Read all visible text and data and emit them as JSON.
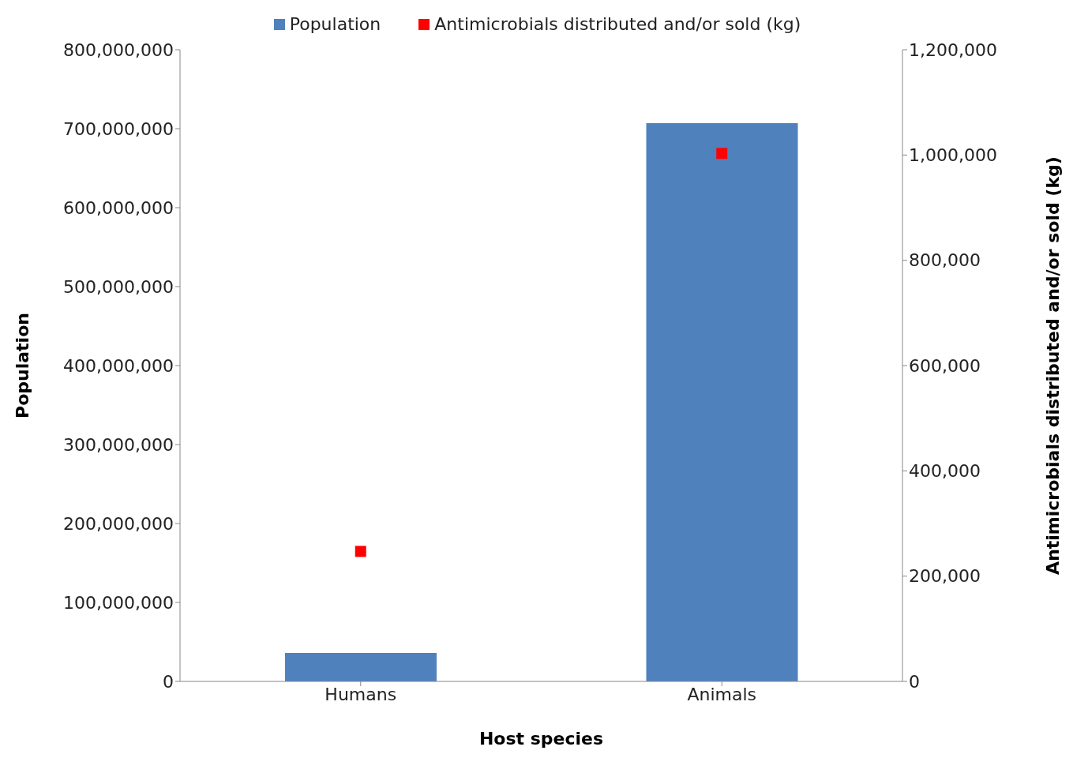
{
  "chart_data": {
    "type": "bar",
    "xlabel": "Host species",
    "ylabel": "Population",
    "y2label": "Antimicrobials distributed and/or sold (kg)",
    "categories": [
      "Humans",
      "Animals"
    ],
    "series": [
      {
        "name": "Population",
        "color": "#4f81bd",
        "values": [
          36000000,
          707000000
        ]
      },
      {
        "name": "Antimicrobials distributed and/or sold (kg)",
        "type": "scatter",
        "axis": "y2",
        "color": "#ff0000",
        "marker": "square",
        "values": [
          247000,
          1003000
        ]
      }
    ],
    "ylim": [
      0,
      800000000
    ],
    "yticks": [
      0,
      {
        "value": 100000000,
        "label": "100,000,000"
      },
      {
        "value": 200000000,
        "label": "200,000,000"
      },
      {
        "value": 300000000,
        "label": "300,000,000"
      },
      {
        "value": 400000000,
        "label": "400,000,000"
      },
      {
        "value": 500000000,
        "label": "500,000,000"
      },
      {
        "value": 600000000,
        "label": "600,000,000"
      },
      {
        "value": 700000000,
        "label": "700,000,000"
      },
      {
        "value": 800000000,
        "label": "800,000,000"
      }
    ],
    "y2lim": [
      0,
      1200000
    ],
    "y2ticks": [
      0,
      {
        "value": 200000,
        "label": "200,000"
      },
      {
        "value": 400000,
        "label": "400,000"
      },
      {
        "value": 600000,
        "label": "600,000"
      },
      {
        "value": 800000,
        "label": "800,000"
      },
      {
        "value": 1000000,
        "label": "1,000,000"
      },
      {
        "value": 1200000,
        "label": "1,200,000"
      }
    ],
    "grid": false,
    "legend": "top"
  }
}
